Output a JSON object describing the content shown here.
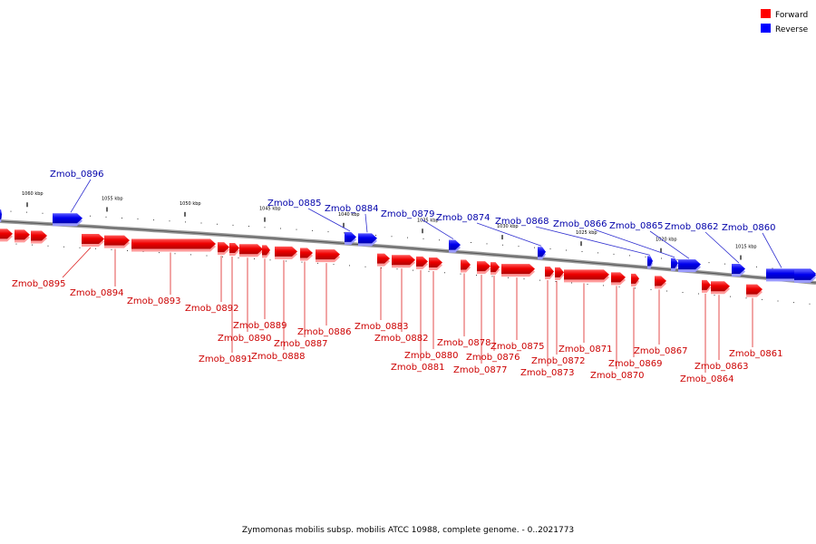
{
  "caption": "Zymomonas mobilis subsp. mobilis ATCC 10988, complete genome. - 0..2021773",
  "legend": [
    {
      "label": "Forward",
      "color": "#ff0000"
    },
    {
      "label": "Reverse",
      "color": "#0000ff"
    }
  ],
  "scale_labels": [
    "1060 kbp",
    "1055 kbp",
    "1050 kbp",
    "1045 kbp",
    "1040 kbp",
    "1035 kbp",
    "1030 kbp",
    "1025 kbp",
    "1020 kbp",
    "1015 kbp"
  ],
  "genes_reverse": [
    "Zmob_0896",
    "Zmob_0885",
    "Zmob_0884",
    "Zmob_0879",
    "Zmob_0874",
    "Zmob_0868",
    "Zmob_0866",
    "Zmob_0865",
    "Zmob_0862",
    "Zmob_0860"
  ],
  "genes_forward": [
    "Zmob_0895",
    "Zmob_0894",
    "Zmob_0893",
    "Zmob_0892",
    "Zmob_0891",
    "Zmob_0890",
    "Zmob_0889",
    "Zmob_0888",
    "Zmob_0887",
    "Zmob_0886",
    "Zmob_0883",
    "Zmob_0882",
    "Zmob_0881",
    "Zmob_0880",
    "Zmob_0878",
    "Zmob_0877",
    "Zmob_0876",
    "Zmob_0875",
    "Zmob_0873",
    "Zmob_0872",
    "Zmob_0871",
    "Zmob_0870",
    "Zmob_0869",
    "Zmob_0867",
    "Zmob_0864",
    "Zmob_0863",
    "Zmob_0861"
  ]
}
